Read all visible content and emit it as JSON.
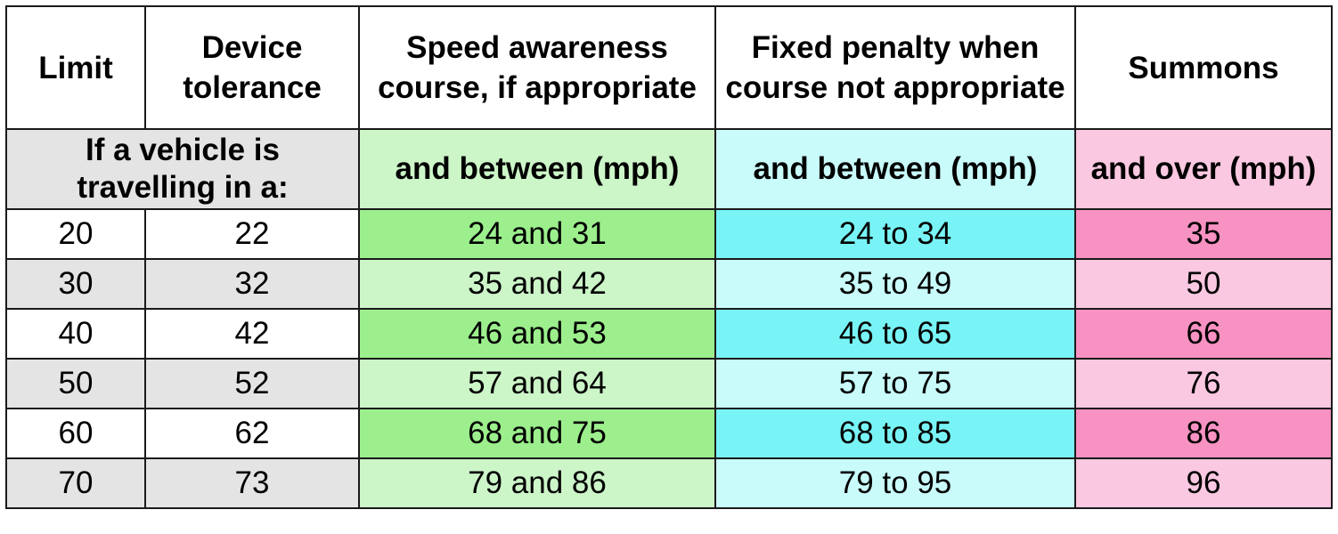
{
  "headers": {
    "limit": "Limit",
    "tolerance": "Device tolerance",
    "speed_awareness": "Speed awareness course, if appropriate",
    "fixed_penalty": "Fixed penalty when course not appropriate",
    "summons": "Summons"
  },
  "subheaders": {
    "vehicle": "If a vehicle is travelling in a:",
    "speed_awareness": "and between (mph)",
    "fixed_penalty": "and between (mph)",
    "summons": "and over (mph)"
  },
  "rows": [
    {
      "limit": "20",
      "tolerance": "22",
      "course": "24 and 31",
      "penalty": "24 to 34",
      "summons": "35"
    },
    {
      "limit": "30",
      "tolerance": "32",
      "course": "35 and 42",
      "penalty": "35 to 49",
      "summons": "50"
    },
    {
      "limit": "40",
      "tolerance": "42",
      "course": "46 and 53",
      "penalty": "46 to 65",
      "summons": "66"
    },
    {
      "limit": "50",
      "tolerance": "52",
      "course": "57 and 64",
      "penalty": "57 to 75",
      "summons": "76"
    },
    {
      "limit": "60",
      "tolerance": "62",
      "course": "68 and 75",
      "penalty": "68 to 85",
      "summons": "86"
    },
    {
      "limit": "70",
      "tolerance": "73",
      "course": "79 and 86",
      "penalty": "79 to 95",
      "summons": "96"
    }
  ],
  "colors": {
    "header_gray": "#e4e4e4",
    "green_light": "#ccf5c8",
    "green_dark": "#9cef8c",
    "cyan_light": "#c9fbfb",
    "cyan_dark": "#79f4f6",
    "pink_light": "#fbc8e1",
    "pink_dark": "#f792c2",
    "tolerance_text": "#8a8a8a"
  }
}
